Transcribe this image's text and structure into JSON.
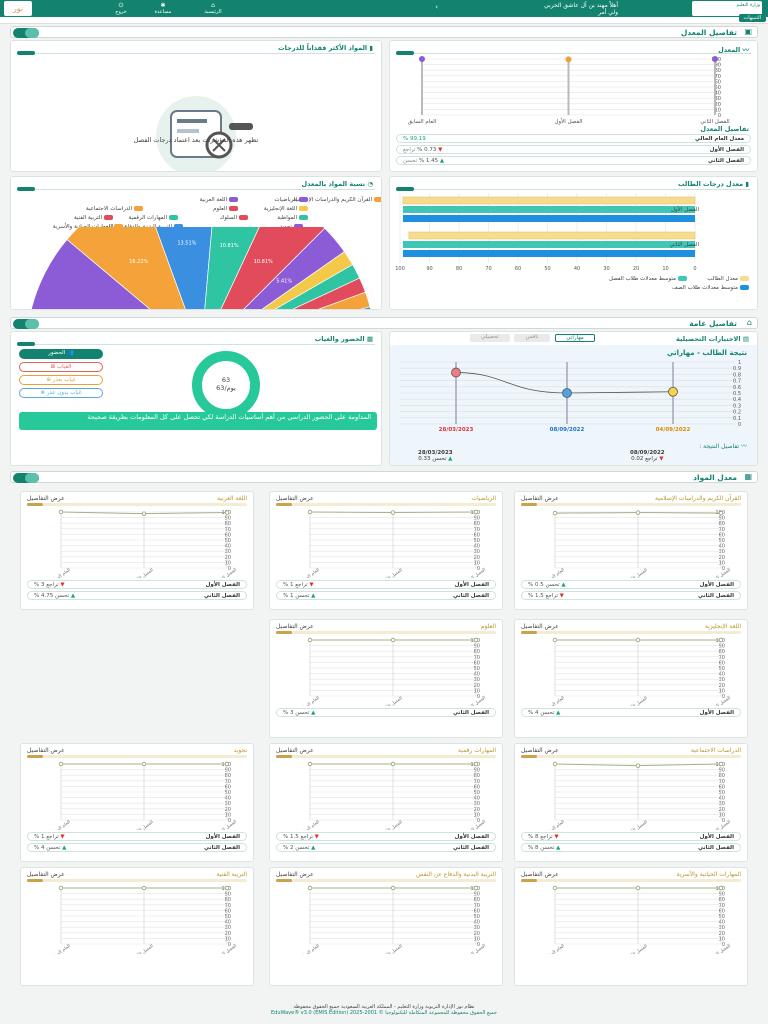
{
  "topbar": {
    "user_line1": "أهلاً مهند بن آل عاشق الحربي",
    "user_line2": "ولي أمر",
    "logo_text": "وزارة التعليم",
    "nav": [
      {
        "label": "الرئيسية",
        "icon": "⌂"
      },
      {
        "label": "مساعدة",
        "icon": "✱"
      },
      {
        "label": "خروج",
        "icon": "⏻"
      }
    ],
    "notifications": "التنبيهات",
    "left_logo": "نور"
  },
  "sections": {
    "average": "تفاصيل المعدل",
    "general": "تفاصيل عامة",
    "subjects": "معدل المواد"
  },
  "avg_card": {
    "title": "المعدل",
    "y_ticks": [
      "100",
      "90",
      "80",
      "70",
      "60",
      "50",
      "40",
      "30",
      "20",
      "10",
      "0"
    ],
    "x_labels": [
      "العام السابق",
      "الفصل الأول",
      "الفصل الثاني"
    ],
    "details_title": "تفاصيل المعدل",
    "rows": [
      {
        "label": "معدل العام الحالي",
        "value": "99.19 %",
        "trend": ""
      },
      {
        "label": "الفصل الأول",
        "value": "0.73 %",
        "trend": "تراجع"
      },
      {
        "label": "الفصل الثاني",
        "value": "1.45 %",
        "trend": "تحسن"
      }
    ]
  },
  "lost_card": {
    "title": "المواد الأكثر فقداناً للدرجات",
    "empty": "تظهر هذه المؤشرات بعد اعتماد درجات الفصل"
  },
  "grades_card": {
    "title": "معدل درجات الطالب",
    "cats": [
      "الفصل الأول",
      "الفصل الثاني"
    ],
    "x_ticks": [
      "100",
      "90",
      "80",
      "70",
      "60",
      "50",
      "40",
      "30",
      "20",
      "10",
      "0"
    ],
    "legend": [
      "معدل الطالب",
      "متوسط معدلات طلاب الفصل",
      "متوسط معدلات طلاب الصف"
    ],
    "colors": [
      "#f6dc8e",
      "#3fc6b7",
      "#1e90e0"
    ]
  },
  "share_card": {
    "title": "نسبة المواد بالمعدل",
    "legend": [
      {
        "name": "القرآن الكريم والدراسات الإسلامية",
        "color": "#f4a23a"
      },
      {
        "name": "الرياضيات",
        "color": "#8c5bd6"
      },
      {
        "name": "اللغة العربية",
        "color": "#8c5bd6"
      },
      {
        "name": "اللغة الإنجليزية",
        "color": "#f4c94a"
      },
      {
        "name": "العلوم",
        "color": "#e24b5c"
      },
      {
        "name": "الدراسات الاجتماعية",
        "color": "#f4a23a"
      },
      {
        "name": "المهارات الرقمية",
        "color": "#2fc4a2"
      },
      {
        "name": "السلوك",
        "color": "#e24b5c"
      },
      {
        "name": "المواظبة",
        "color": "#2fc4a2"
      },
      {
        "name": "التربية الفنية",
        "color": "#e24b5c"
      },
      {
        "name": "تجويد",
        "color": "#8c5bd6"
      },
      {
        "name": "التربية البدنية والدفاع عن النفس",
        "color": "#3b8fe0"
      },
      {
        "name": "المهارات الحياتية والأسرية",
        "color": "#f4a23a"
      }
    ],
    "slices": [
      21.62,
      16.22,
      13.51,
      10.81,
      10.81,
      5.41,
      2.7,
      2.7,
      2.7,
      2.7,
      2.7,
      2.7,
      2.7
    ],
    "slice_colors": [
      "#8c5bd6",
      "#f4a23a",
      "#3b8fe0",
      "#2fc4a2",
      "#e24b5c",
      "#8c5bd6",
      "#f4c94a",
      "#2fc4a2",
      "#e24b5c",
      "#f4a23a",
      "#3b8fe0",
      "#8c5bd6",
      "#2fc4a2"
    ],
    "labels": [
      "21.62%",
      "16.22%",
      "13.51%",
      "10.81%",
      "10.81%",
      "5.41%"
    ]
  },
  "tests_card": {
    "title": "الاختبارات التحصيلية",
    "tabs": [
      "مهاراتي",
      "نافس",
      "تحصيلي"
    ],
    "chart_title": "نتيجة الطالب - مهاراتي",
    "y_ticks": [
      "1",
      "0.9",
      "0.8",
      "0.7",
      "0.6",
      "0.5",
      "0.4",
      "0.3",
      "0.2",
      "0.1",
      "0"
    ],
    "x_labels": [
      "28/03/2023",
      "08/09/2022",
      "04/09/2022"
    ],
    "details_title": "تفاصيل النتيجة :",
    "d1_date": "28/03/2023",
    "d1_val": "تحسن 0.33",
    "d2_date": "08/09/2022",
    "d2_val": "تراجع 0.02"
  },
  "chart_data": [
    {
      "type": "line",
      "title": "المعدل",
      "x": [
        "العام السابق",
        "الفصل الأول",
        "الفصل الثاني"
      ],
      "values": [
        100,
        99.27,
        100.72
      ],
      "ylim": [
        0,
        100
      ]
    },
    {
      "type": "bar",
      "title": "معدل درجات الطالب",
      "categories": [
        "الفصل الأول",
        "الفصل الثاني"
      ],
      "series": [
        {
          "name": "معدل الطالب",
          "values": [
            99,
            97
          ]
        },
        {
          "name": "متوسط معدلات طلاب الفصل",
          "values": [
            99,
            99
          ]
        },
        {
          "name": "متوسط معدلات طلاب الصف",
          "values": [
            99,
            99
          ]
        }
      ],
      "xlim": [
        0,
        100
      ]
    },
    {
      "type": "pie",
      "title": "نسبة المواد بالمعدل",
      "values": [
        21.62,
        16.22,
        13.51,
        10.81,
        10.81,
        5.41,
        2.7,
        2.7,
        2.7,
        2.7,
        2.7,
        2.7,
        2.7
      ]
    },
    {
      "type": "line",
      "title": "نتيجة الطالب - مهاراتي",
      "x": [
        "04/09/2022",
        "08/09/2022",
        "28/03/2023"
      ],
      "values": [
        0.52,
        0.5,
        0.83
      ],
      "ylim": [
        0,
        1
      ]
    }
  ],
  "attendance_card": {
    "title": "الحضور والغياب",
    "ring_value": "63",
    "ring_sub": "يوم/63",
    "items": [
      "الحضور",
      "الغياب",
      "غياب بعذر",
      "غياب بدون عذر"
    ],
    "tip": "المداومة على الحضور الدراسي من أهم أساسيات الدراسة لكي تحصل على كل المعلومات بطريقة صحيحة"
  },
  "subjects": [
    {
      "name": "القرآن الكريم والدراسات الإسلامية",
      "rows": [
        {
          "l": "الفصل الأول",
          "v": "تحسن 0.5 %",
          "t": "up"
        },
        {
          "l": "الفصل الثاني",
          "v": "تراجع 1.5 %",
          "t": "down"
        }
      ],
      "vals": [
        98,
        99,
        98
      ]
    },
    {
      "name": "الرياضيات",
      "rows": [
        {
          "l": "الفصل الأول",
          "v": "تراجع 1 %",
          "t": "down"
        },
        {
          "l": "الفصل الثاني",
          "v": "تحسن 1 %",
          "t": "up"
        }
      ],
      "vals": [
        100,
        99,
        100
      ]
    },
    {
      "name": "اللغة العربية",
      "rows": [
        {
          "l": "الفصل الأول",
          "v": "تراجع 3 %",
          "t": "down"
        },
        {
          "l": "الفصل الثاني",
          "v": "تحسن 4.75 %",
          "t": "up"
        }
      ],
      "vals": [
        100,
        97,
        99
      ]
    },
    {
      "name": "اللغة الإنجليزية",
      "rows": [
        {
          "l": "الفصل الأول",
          "v": "تحسن 4 %",
          "t": "up"
        }
      ],
      "vals": [
        100,
        100,
        100
      ]
    },
    {
      "name": "العلوم",
      "rows": [
        {
          "l": "الفصل الثاني",
          "v": "تحسن 3 %",
          "t": "up"
        }
      ],
      "vals": [
        100,
        100,
        100
      ]
    },
    {
      "name": "الدراسات الاجتماعية",
      "rows": [
        {
          "l": "الفصل الأول",
          "v": "تراجع 8 %",
          "t": "down"
        },
        {
          "l": "الفصل الثاني",
          "v": "تحسن 8 %",
          "t": "up"
        }
      ],
      "vals": [
        100,
        97,
        100
      ]
    },
    {
      "name": "المهارات رقمية",
      "rows": [
        {
          "l": "الفصل الأول",
          "v": "تراجع 1.5 %",
          "t": "down"
        },
        {
          "l": "الفصل الثاني",
          "v": "تحسن 2 %",
          "t": "up"
        }
      ],
      "vals": [
        100,
        100,
        100
      ]
    },
    {
      "name": "تجويد",
      "rows": [
        {
          "l": "الفصل الأول",
          "v": "تراجع 1 %",
          "t": "down"
        },
        {
          "l": "الفصل الثاني",
          "v": "تحسن 4 %",
          "t": "up"
        }
      ],
      "vals": [
        100,
        100,
        100
      ]
    },
    {
      "name": "المهارات الحياتية والأسرية",
      "rows": [],
      "vals": [
        100,
        100,
        100
      ]
    },
    {
      "name": "التربية البدنية والدفاع عن النفس",
      "rows": [],
      "vals": [
        100,
        100,
        100
      ]
    },
    {
      "name": "التربية الفنية",
      "rows": [],
      "vals": [
        100,
        100,
        100
      ]
    }
  ],
  "subj_common": {
    "details": "عرض التفاصيل",
    "y_ticks": [
      "100",
      "90",
      "80",
      "70",
      "60",
      "50",
      "40",
      "30",
      "20",
      "10",
      "0"
    ],
    "x_labels": [
      "العام السابق",
      "الفصل الأول",
      "الفصل الثاني"
    ]
  },
  "footer": {
    "line1": "نظام نور الإدارة التربوية وزارة التعليم - المملكة العربية السعودية جميع الحقوق محفوظة",
    "line2": "جميع الحقوق محفوظة للمجموعة المتكاملة للتكنولوجيا © 2001-2025 EduWave® v3.0 (EMIS Edition)"
  }
}
